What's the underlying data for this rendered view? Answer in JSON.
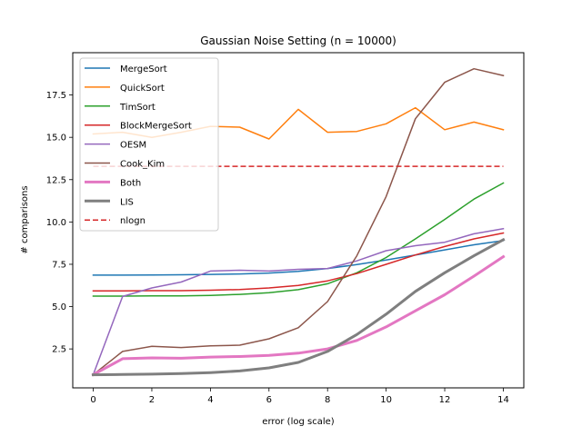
{
  "chart_data": {
    "type": "line",
    "title": "Gaussian Noise Setting (n = 10000)",
    "xlabel": "error (log scale)",
    "ylabel": "# comparisons",
    "xlim": [
      -0.7,
      14.7
    ],
    "ylim": [
      0.2,
      20.0
    ],
    "xticks": [
      0,
      2,
      4,
      6,
      8,
      10,
      12,
      14
    ],
    "yticks": [
      2.5,
      5.0,
      7.5,
      10.0,
      12.5,
      15.0,
      17.5
    ],
    "ytick_labels": [
      "2.5",
      "5.0",
      "7.5",
      "10.0",
      "12.5",
      "15.0",
      "17.5"
    ],
    "grid": false,
    "legend_position": "upper-left",
    "x": [
      0,
      1,
      2,
      3,
      4,
      5,
      6,
      7,
      8,
      9,
      10,
      11,
      12,
      13,
      14
    ],
    "series": [
      {
        "name": "MergeSort",
        "color": "#1f77b4",
        "style": "solid",
        "width": 1.5,
        "values": [
          6.86,
          6.86,
          6.87,
          6.88,
          6.9,
          6.93,
          6.98,
          7.08,
          7.25,
          7.48,
          7.75,
          8.05,
          8.35,
          8.65,
          8.9
        ]
      },
      {
        "name": "QuickSort",
        "color": "#ff7f0e",
        "style": "solid",
        "width": 1.5,
        "values": [
          15.2,
          15.3,
          15.0,
          15.3,
          15.65,
          15.6,
          14.9,
          16.65,
          15.3,
          15.35,
          15.8,
          16.75,
          15.45,
          15.9,
          15.45
        ]
      },
      {
        "name": "TimSort",
        "color": "#2ca02c",
        "style": "solid",
        "width": 1.5,
        "values": [
          5.62,
          5.62,
          5.63,
          5.63,
          5.66,
          5.72,
          5.82,
          6.0,
          6.35,
          7.0,
          7.9,
          9.0,
          10.15,
          11.35,
          12.3
        ]
      },
      {
        "name": "BlockMergeSort",
        "color": "#d62728",
        "style": "solid",
        "width": 1.5,
        "values": [
          5.93,
          5.93,
          5.94,
          5.94,
          5.97,
          6.01,
          6.1,
          6.25,
          6.52,
          6.95,
          7.5,
          8.05,
          8.55,
          9.0,
          9.35
        ]
      },
      {
        "name": "OESM",
        "color": "#9467bd",
        "style": "solid",
        "width": 1.5,
        "values": [
          0.98,
          5.6,
          6.1,
          6.45,
          7.1,
          7.15,
          7.1,
          7.2,
          7.25,
          7.7,
          8.3,
          8.6,
          8.8,
          9.3,
          9.6
        ]
      },
      {
        "name": "Cook_Kim",
        "color": "#8c564b",
        "style": "solid",
        "width": 1.5,
        "values": [
          0.98,
          2.35,
          2.65,
          2.58,
          2.68,
          2.72,
          3.1,
          3.75,
          5.3,
          8.0,
          11.5,
          16.1,
          18.25,
          19.05,
          18.65
        ]
      },
      {
        "name": "Both",
        "color": "#e377c2",
        "style": "solid",
        "width": 3,
        "values": [
          0.98,
          1.92,
          1.97,
          1.95,
          2.02,
          2.05,
          2.12,
          2.25,
          2.5,
          3.0,
          3.8,
          4.75,
          5.7,
          6.8,
          7.95
        ]
      },
      {
        "name": "LIS",
        "color": "#7f7f7f",
        "style": "solid",
        "width": 3,
        "values": [
          0.97,
          0.99,
          1.01,
          1.04,
          1.1,
          1.2,
          1.38,
          1.7,
          2.35,
          3.35,
          4.55,
          5.9,
          7.0,
          8.0,
          8.95
        ]
      },
      {
        "name": "nlogn",
        "color": "#d62728",
        "style": "dashed",
        "width": 1.5,
        "values": [
          13.29,
          13.29,
          13.29,
          13.29,
          13.29,
          13.29,
          13.29,
          13.29,
          13.29,
          13.29,
          13.29,
          13.29,
          13.29,
          13.29,
          13.29
        ]
      }
    ]
  }
}
